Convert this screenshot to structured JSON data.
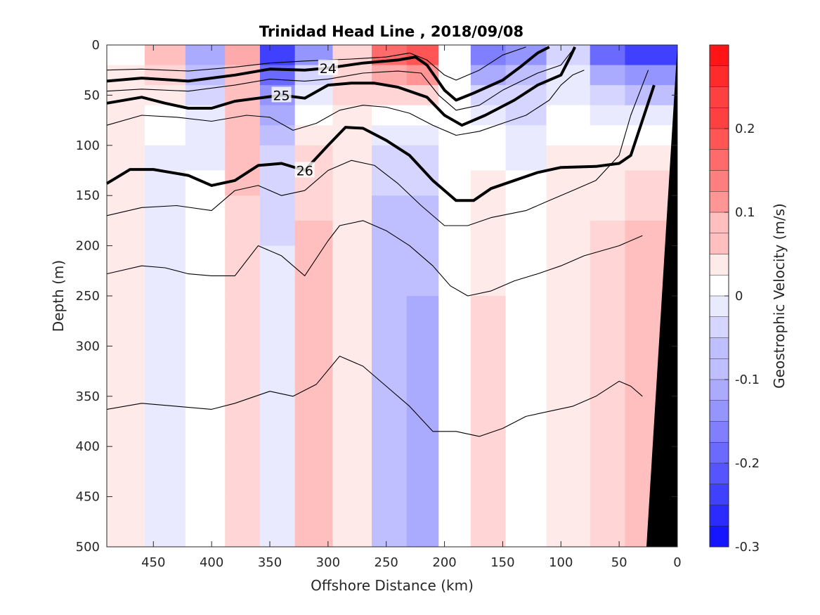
{
  "chart_data": {
    "type": "heatmap",
    "title": "Trinidad Head Line , 2018/09/08",
    "xlabel": "Offshore Distance (km)",
    "ylabel": "Depth (m)",
    "x_reversed": true,
    "xlim": [
      0,
      490
    ],
    "ylim": [
      0,
      500
    ],
    "y_reversed": true,
    "xticks": [
      450,
      400,
      350,
      300,
      250,
      200,
      150,
      100,
      50,
      0
    ],
    "yticks": [
      0,
      50,
      100,
      150,
      200,
      250,
      300,
      350,
      400,
      450,
      500
    ],
    "colorbar": {
      "label": "Geostrophic Velocity (m/s)",
      "range": [
        -0.3,
        0.3
      ],
      "step": 0.025,
      "ticks": [
        -0.3,
        -0.2,
        -0.1,
        0,
        0.1,
        0.2
      ],
      "tick_labels": [
        "-0.3",
        "-0.2",
        "-0.1",
        "0",
        "0.1",
        "0.2"
      ],
      "low_color": "#0000ff",
      "mid_color": "#ffffff",
      "high_color": "#ff0000"
    },
    "velocity_columns": [
      {
        "x": 475,
        "top": 0.0,
        "deep": 0.03
      },
      {
        "x": 440,
        "top": 0.09,
        "deep": -0.03
      },
      {
        "x": 405,
        "top": -0.12,
        "deep": 0.0
      },
      {
        "x": 372,
        "top": 0.1,
        "deep": 0.06
      },
      {
        "x": 345,
        "top": -0.26,
        "deep": -0.03
      },
      {
        "x": 312,
        "top": -0.15,
        "deep": 0.07
      },
      {
        "x": 280,
        "top": 0.05,
        "deep": 0.03
      },
      {
        "x": 245,
        "top": 0.22,
        "deep": -0.08
      },
      {
        "x": 220,
        "top": 0.27,
        "deep": -0.09
      },
      {
        "x": 190,
        "top": 0.0,
        "deep": 0.0
      },
      {
        "x": 165,
        "top": -0.18,
        "deep": 0.04
      },
      {
        "x": 130,
        "top": -0.15,
        "deep": 0.0
      },
      {
        "x": 95,
        "top": -0.08,
        "deep": 0.03
      },
      {
        "x": 55,
        "top": -0.22,
        "deep": 0.05
      },
      {
        "x": 35,
        "top": -0.28,
        "deep": 0.08
      }
    ],
    "series": [
      {
        "name": "",
        "bold": false,
        "label": "",
        "points": [
          [
            490,
            25
          ],
          [
            460,
            24
          ],
          [
            420,
            26
          ],
          [
            380,
            22
          ],
          [
            350,
            18
          ],
          [
            320,
            16
          ],
          [
            280,
            14
          ],
          [
            250,
            12
          ],
          [
            230,
            8
          ],
          [
            215,
            15
          ],
          [
            200,
            30
          ],
          [
            190,
            35
          ],
          [
            170,
            25
          ],
          [
            150,
            10
          ],
          [
            130,
            2
          ]
        ]
      },
      {
        "name": "",
        "bold": true,
        "label": "24",
        "points": [
          [
            490,
            36
          ],
          [
            460,
            33
          ],
          [
            420,
            36
          ],
          [
            380,
            30
          ],
          [
            350,
            24
          ],
          [
            320,
            25
          ],
          [
            300,
            23
          ],
          [
            270,
            18
          ],
          [
            240,
            15
          ],
          [
            225,
            12
          ],
          [
            215,
            20
          ],
          [
            200,
            45
          ],
          [
            190,
            55
          ],
          [
            175,
            48
          ],
          [
            150,
            35
          ],
          [
            135,
            22
          ],
          [
            120,
            8
          ],
          [
            110,
            2
          ]
        ]
      },
      {
        "name": "",
        "bold": false,
        "label": "",
        "points": [
          [
            490,
            46
          ],
          [
            460,
            44
          ],
          [
            420,
            46
          ],
          [
            380,
            40
          ],
          [
            350,
            34
          ],
          [
            320,
            36
          ],
          [
            300,
            34
          ],
          [
            270,
            28
          ],
          [
            240,
            26
          ],
          [
            220,
            28
          ],
          [
            205,
            50
          ],
          [
            190,
            65
          ],
          [
            170,
            60
          ],
          [
            150,
            45
          ],
          [
            120,
            28
          ],
          [
            100,
            20
          ],
          [
            88,
            2
          ]
        ]
      },
      {
        "name": "",
        "bold": true,
        "label": "25",
        "points": [
          [
            490,
            58
          ],
          [
            460,
            52
          ],
          [
            440,
            58
          ],
          [
            420,
            63
          ],
          [
            400,
            63
          ],
          [
            380,
            56
          ],
          [
            360,
            53
          ],
          [
            340,
            50
          ],
          [
            320,
            53
          ],
          [
            300,
            40
          ],
          [
            280,
            38
          ],
          [
            260,
            38
          ],
          [
            240,
            42
          ],
          [
            215,
            52
          ],
          [
            200,
            70
          ],
          [
            185,
            80
          ],
          [
            165,
            70
          ],
          [
            140,
            55
          ],
          [
            120,
            40
          ],
          [
            100,
            30
          ],
          [
            92,
            12
          ],
          [
            88,
            2
          ]
        ]
      },
      {
        "name": "",
        "bold": false,
        "label": "",
        "points": [
          [
            490,
            80
          ],
          [
            460,
            70
          ],
          [
            430,
            72
          ],
          [
            400,
            76
          ],
          [
            370,
            70
          ],
          [
            350,
            72
          ],
          [
            330,
            85
          ],
          [
            310,
            78
          ],
          [
            290,
            65
          ],
          [
            270,
            60
          ],
          [
            250,
            62
          ],
          [
            230,
            68
          ],
          [
            210,
            80
          ],
          [
            190,
            90
          ],
          [
            170,
            86
          ],
          [
            150,
            78
          ],
          [
            130,
            70
          ],
          [
            110,
            55
          ],
          [
            100,
            40
          ],
          [
            90,
            30
          ],
          [
            80,
            25
          ]
        ]
      },
      {
        "name": "",
        "bold": true,
        "label": "26",
        "points": [
          [
            490,
            138
          ],
          [
            470,
            124
          ],
          [
            450,
            124
          ],
          [
            420,
            130
          ],
          [
            400,
            140
          ],
          [
            380,
            135
          ],
          [
            360,
            120
          ],
          [
            340,
            118
          ],
          [
            320,
            125
          ],
          [
            300,
            100
          ],
          [
            285,
            82
          ],
          [
            270,
            83
          ],
          [
            250,
            95
          ],
          [
            230,
            110
          ],
          [
            210,
            135
          ],
          [
            190,
            155
          ],
          [
            175,
            155
          ],
          [
            160,
            143
          ],
          [
            140,
            135
          ],
          [
            120,
            127
          ],
          [
            100,
            122
          ],
          [
            70,
            121
          ],
          [
            50,
            118
          ],
          [
            40,
            110
          ],
          [
            30,
            75
          ],
          [
            20,
            40
          ]
        ]
      },
      {
        "name": "",
        "bold": false,
        "label": "",
        "points": [
          [
            490,
            170
          ],
          [
            460,
            162
          ],
          [
            430,
            160
          ],
          [
            400,
            165
          ],
          [
            380,
            145
          ],
          [
            360,
            140
          ],
          [
            340,
            150
          ],
          [
            320,
            145
          ],
          [
            300,
            125
          ],
          [
            280,
            115
          ],
          [
            260,
            120
          ],
          [
            240,
            138
          ],
          [
            220,
            160
          ],
          [
            200,
            180
          ],
          [
            180,
            180
          ],
          [
            160,
            172
          ],
          [
            130,
            165
          ],
          [
            110,
            155
          ],
          [
            90,
            145
          ],
          [
            70,
            135
          ],
          [
            50,
            110
          ],
          [
            40,
            70
          ],
          [
            30,
            40
          ],
          [
            25,
            25
          ]
        ]
      },
      {
        "name": "",
        "bold": false,
        "label": "",
        "points": [
          [
            490,
            228
          ],
          [
            460,
            220
          ],
          [
            440,
            222
          ],
          [
            420,
            228
          ],
          [
            400,
            230
          ],
          [
            380,
            230
          ],
          [
            360,
            200
          ],
          [
            340,
            210
          ],
          [
            320,
            230
          ],
          [
            300,
            195
          ],
          [
            290,
            180
          ],
          [
            270,
            175
          ],
          [
            250,
            185
          ],
          [
            230,
            200
          ],
          [
            210,
            220
          ],
          [
            195,
            240
          ],
          [
            180,
            250
          ],
          [
            160,
            245
          ],
          [
            140,
            235
          ],
          [
            120,
            228
          ],
          [
            100,
            220
          ],
          [
            80,
            210
          ],
          [
            50,
            200
          ],
          [
            30,
            190
          ]
        ]
      },
      {
        "name": "",
        "bold": false,
        "label": "",
        "points": [
          [
            490,
            363
          ],
          [
            460,
            357
          ],
          [
            430,
            360
          ],
          [
            400,
            363
          ],
          [
            380,
            357
          ],
          [
            350,
            345
          ],
          [
            330,
            350
          ],
          [
            310,
            338
          ],
          [
            290,
            310
          ],
          [
            270,
            320
          ],
          [
            250,
            340
          ],
          [
            230,
            360
          ],
          [
            210,
            385
          ],
          [
            190,
            385
          ],
          [
            170,
            390
          ],
          [
            150,
            382
          ],
          [
            130,
            370
          ],
          [
            110,
            365
          ],
          [
            90,
            360
          ],
          [
            70,
            350
          ],
          [
            50,
            335
          ],
          [
            40,
            340
          ],
          [
            30,
            350
          ]
        ]
      }
    ]
  }
}
